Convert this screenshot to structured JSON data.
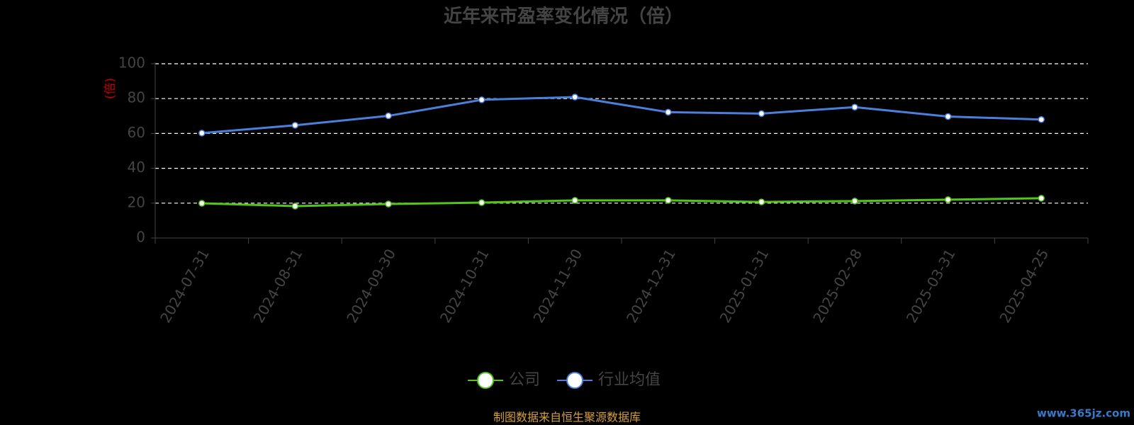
{
  "chart_data": {
    "type": "line",
    "title": "近年来市盈率变化情况（倍）",
    "y_label": "(倍)",
    "categories": [
      "2024-07-31",
      "2024-08-31",
      "2024-09-30",
      "2024-10-31",
      "2024-11-30",
      "2024-12-31",
      "2025-01-31",
      "2025-02-28",
      "2025-03-31",
      "2025-04-25"
    ],
    "series": [
      {
        "name": "公司",
        "color": "#52c41a",
        "values": [
          19.9,
          18.3,
          19.5,
          20.3,
          21.6,
          21.6,
          20.7,
          21.2,
          22.0,
          22.8
        ]
      },
      {
        "name": "行业均值",
        "color": "#4a7fdc",
        "values": [
          60.2,
          64.7,
          70.1,
          79.3,
          80.9,
          72.2,
          71.4,
          75.1,
          69.7,
          68.0
        ]
      }
    ],
    "ylim": [
      0,
      100
    ],
    "yticks": [
      0,
      20,
      40,
      60,
      80,
      100
    ],
    "grid": true,
    "source": "制图数据来自恒生聚源数据库",
    "watermark": "www.365jz.com"
  }
}
